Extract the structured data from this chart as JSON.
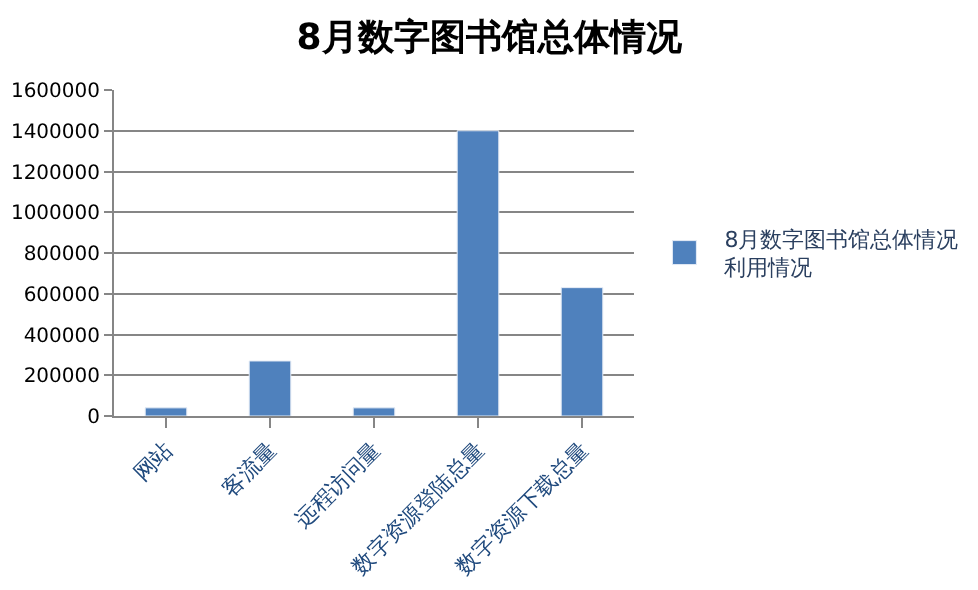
{
  "chart_data": {
    "type": "bar",
    "title": "8月数字图书馆总体情况",
    "categories": [
      "网站",
      "客流量",
      "远程访问量",
      "数字资源登陆总量",
      "数字资源下载总量"
    ],
    "series": [
      {
        "name": "8月数字图书馆总体情况利用情况",
        "color": "#4f81bd",
        "values": [
          40000,
          270000,
          40000,
          1400000,
          630000
        ]
      }
    ],
    "ylim": [
      0,
      1600000
    ],
    "yticks": [
      0,
      200000,
      400000,
      600000,
      800000,
      1000000,
      1200000,
      1400000,
      1600000
    ],
    "grid": "y",
    "legend": "right"
  }
}
